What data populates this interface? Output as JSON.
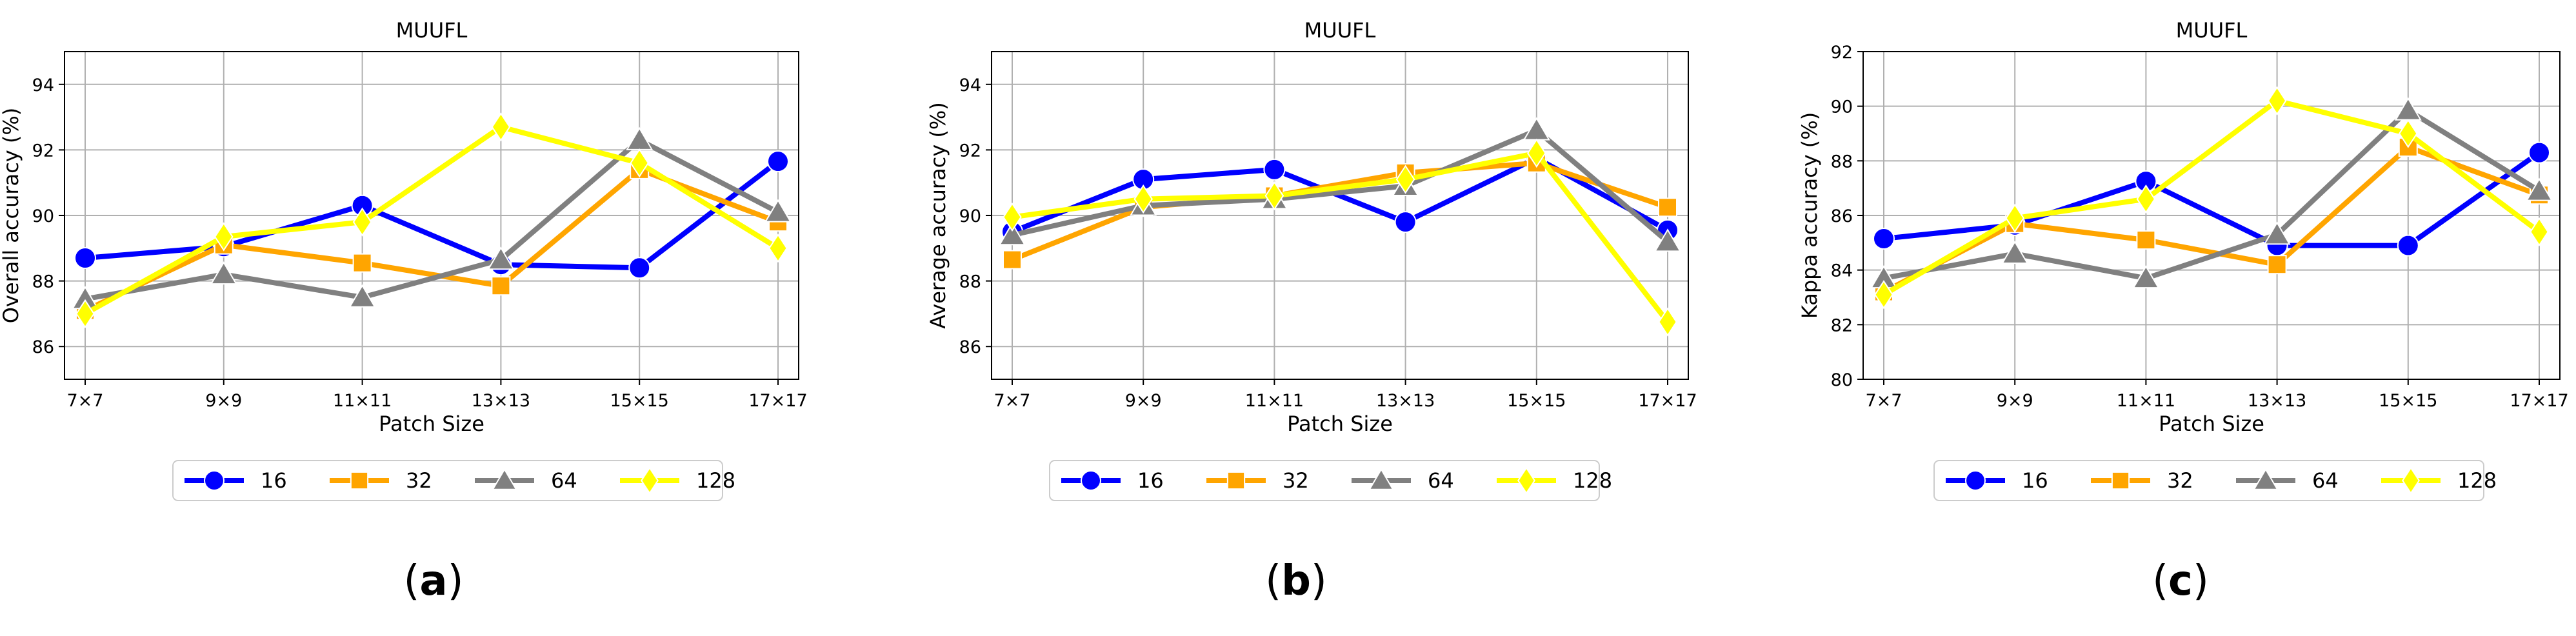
{
  "colors": {
    "16": "#0000ff",
    "32": "#ffa500",
    "64": "#808080",
    "128": "#ffff00",
    "grid": "#b0b0b0",
    "axis": "#000000"
  },
  "chart_data": [
    {
      "type": "line",
      "title": "MUUFL",
      "xlabel": "Patch Size",
      "ylabel": "Overall accuracy (%)",
      "categories": [
        "7×7",
        "9×9",
        "11×11",
        "13×13",
        "15×15",
        "17×17"
      ],
      "ylim": [
        85,
        95
      ],
      "yticks": [
        86,
        88,
        90,
        92,
        94
      ],
      "grid": true,
      "legend": "below",
      "panel_label": "(a)",
      "series": [
        {
          "name": "16",
          "marker": "circle",
          "values": [
            88.7,
            89.05,
            90.3,
            88.5,
            88.4,
            91.65
          ]
        },
        {
          "name": "32",
          "marker": "square",
          "values": [
            87.1,
            89.1,
            88.55,
            87.85,
            91.4,
            89.8
          ]
        },
        {
          "name": "64",
          "marker": "triangle",
          "values": [
            87.45,
            88.2,
            87.5,
            88.65,
            92.3,
            90.1
          ]
        },
        {
          "name": "128",
          "marker": "diamond",
          "values": [
            87.0,
            89.35,
            89.8,
            92.7,
            91.6,
            89.0
          ]
        }
      ]
    },
    {
      "type": "line",
      "title": "MUUFL",
      "xlabel": "Patch Size",
      "ylabel": "Average accuracy (%)",
      "categories": [
        "7×7",
        "9×9",
        "11×11",
        "13×13",
        "15×15",
        "17×17"
      ],
      "ylim": [
        85,
        95
      ],
      "yticks": [
        86,
        88,
        90,
        92,
        94
      ],
      "grid": true,
      "legend": "below",
      "panel_label": "(b)",
      "series": [
        {
          "name": "16",
          "marker": "circle",
          "values": [
            89.5,
            91.1,
            91.4,
            89.8,
            91.75,
            89.55
          ]
        },
        {
          "name": "32",
          "marker": "square",
          "values": [
            88.65,
            90.25,
            90.6,
            91.3,
            91.6,
            90.25
          ]
        },
        {
          "name": "64",
          "marker": "triangle",
          "values": [
            89.4,
            90.3,
            90.5,
            90.9,
            92.6,
            89.2
          ]
        },
        {
          "name": "128",
          "marker": "diamond",
          "values": [
            89.95,
            90.5,
            90.6,
            91.1,
            91.9,
            86.75
          ]
        }
      ]
    },
    {
      "type": "line",
      "title": "MUUFL",
      "xlabel": "Patch Size",
      "ylabel": "Kappa accuracy (%)",
      "categories": [
        "7×7",
        "9×9",
        "11×11",
        "13×13",
        "15×15",
        "17×17"
      ],
      "ylim": [
        80,
        92
      ],
      "yticks": [
        80,
        82,
        84,
        86,
        88,
        90,
        92
      ],
      "grid": true,
      "legend": "below",
      "panel_label": "(c)",
      "series": [
        {
          "name": "16",
          "marker": "circle",
          "values": [
            85.15,
            85.65,
            87.25,
            84.9,
            84.9,
            88.3
          ]
        },
        {
          "name": "32",
          "marker": "square",
          "values": [
            83.2,
            85.7,
            85.1,
            84.2,
            88.5,
            86.75
          ]
        },
        {
          "name": "64",
          "marker": "triangle",
          "values": [
            83.7,
            84.6,
            83.7,
            85.3,
            89.85,
            86.9
          ]
        },
        {
          "name": "128",
          "marker": "diamond",
          "values": [
            83.1,
            85.9,
            86.6,
            90.2,
            89.0,
            85.4
          ]
        }
      ]
    }
  ]
}
